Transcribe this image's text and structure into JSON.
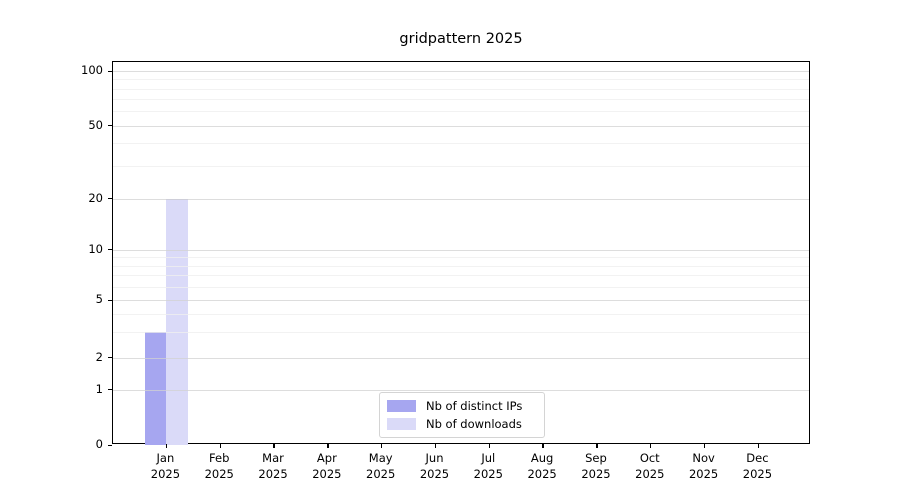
{
  "chart_data": {
    "type": "bar",
    "title": "gridpattern 2025",
    "xlabel": "",
    "ylabel": "",
    "y_scale": "symlog",
    "ylim": [
      0,
      112
    ],
    "grid": true,
    "legend_position": "bottom-center",
    "categories": [
      "Jan",
      "Feb",
      "Mar",
      "Apr",
      "May",
      "Jun",
      "Jul",
      "Aug",
      "Sep",
      "Oct",
      "Nov",
      "Dec"
    ],
    "x_tick_second_line": "2025",
    "y_ticks": [
      0,
      1,
      2,
      5,
      10,
      20,
      50,
      100
    ],
    "y_minor_gridlines": [
      3,
      4,
      6,
      7,
      8,
      9,
      30,
      40,
      60,
      70,
      80,
      90
    ],
    "series": [
      {
        "name": "Nb of distinct IPs",
        "color": "#a6a6f0",
        "edge_color": "#8d8de0",
        "values": [
          3,
          0,
          0,
          0,
          0,
          0,
          0,
          0,
          0,
          0,
          0,
          0
        ]
      },
      {
        "name": "Nb of downloads",
        "color": "#dadaf8",
        "edge_color": "#c4c4ee",
        "values": [
          20,
          0,
          0,
          0,
          0,
          0,
          0,
          0,
          0,
          0,
          0,
          0
        ]
      }
    ]
  }
}
